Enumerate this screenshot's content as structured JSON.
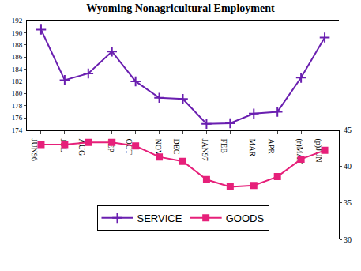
{
  "chart_data": {
    "type": "line",
    "title": "Wyoming Nonagricultural Employment",
    "categories": [
      "JUN96",
      "JUL",
      "AUG",
      "SEP",
      "OCT",
      "NOV",
      "DEC",
      "JAN97",
      "FEB",
      "MAR",
      "APR",
      "(r)MAY",
      "(p)JUN"
    ],
    "series": [
      {
        "name": "SERVICE",
        "color": "#6a1fb0",
        "marker": "cross",
        "line_style": "solid",
        "values": [
          190.5,
          182.2,
          183.3,
          186.9,
          182.0,
          179.3,
          179.1,
          175.0,
          175.1,
          176.7,
          177.0,
          182.6,
          189.2
        ]
      },
      {
        "name": "GOODS",
        "color": "#e6207a",
        "marker": "square",
        "line_style": "solid",
        "axis": "y2",
        "values": [
          43.0,
          43.0,
          43.3,
          43.3,
          42.8,
          41.3,
          40.7,
          38.2,
          37.2,
          37.4,
          38.6,
          41.0,
          42.2
        ]
      }
    ],
    "ylim": [
      174,
      192
    ],
    "yticks": [
      174,
      176,
      178,
      180,
      182,
      184,
      186,
      188,
      190,
      192
    ],
    "y2lim": [
      30,
      45
    ],
    "y2ticks": [
      30,
      35,
      40,
      45
    ],
    "grid": false,
    "legend": "lower center"
  }
}
